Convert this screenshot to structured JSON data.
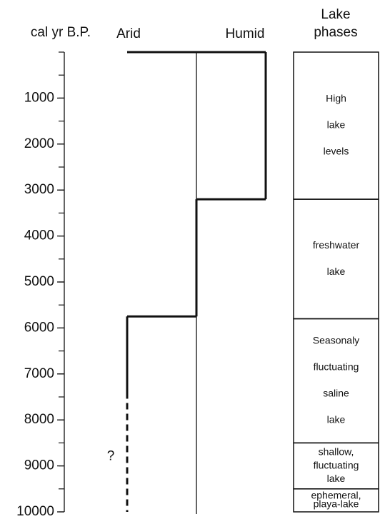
{
  "chart_data": {
    "type": "step",
    "y_label": "cal yr B.P.",
    "x_left_label": "Arid",
    "x_right_label": "Humid",
    "phases_title": [
      "Lake",
      "phases"
    ],
    "ylim": [
      0,
      10000
    ],
    "yticks": [
      1000,
      2000,
      3000,
      4000,
      5000,
      6000,
      7000,
      8000,
      9000,
      10000
    ],
    "minor_step": 500,
    "xlim": [
      0,
      2
    ],
    "steps": [
      {
        "start": 0,
        "end": 3200,
        "level": 2
      },
      {
        "start": 3200,
        "end": 5750,
        "level": 1
      },
      {
        "start": 5750,
        "end": 7400,
        "level": 0
      },
      {
        "start": 7400,
        "end": 10000,
        "level": 0,
        "dashed": true
      }
    ],
    "uncertain_mark": {
      "text": "?",
      "year": 8800
    },
    "phases": [
      {
        "start": 0,
        "end": 3200,
        "lines": [
          "High",
          "lake",
          "levels"
        ]
      },
      {
        "start": 3200,
        "end": 5800,
        "lines": [
          "freshwater",
          "lake"
        ]
      },
      {
        "start": 5800,
        "end": 8500,
        "lines": [
          "Seasonaly",
          "fluctuating",
          "saline",
          "lake"
        ]
      },
      {
        "start": 8500,
        "end": 9500,
        "lines": [
          "shallow,",
          "fluctuating",
          "lake"
        ]
      },
      {
        "start": 9500,
        "end": 10000,
        "lines": [
          "ephemeral,",
          "playa-lake"
        ]
      }
    ]
  }
}
